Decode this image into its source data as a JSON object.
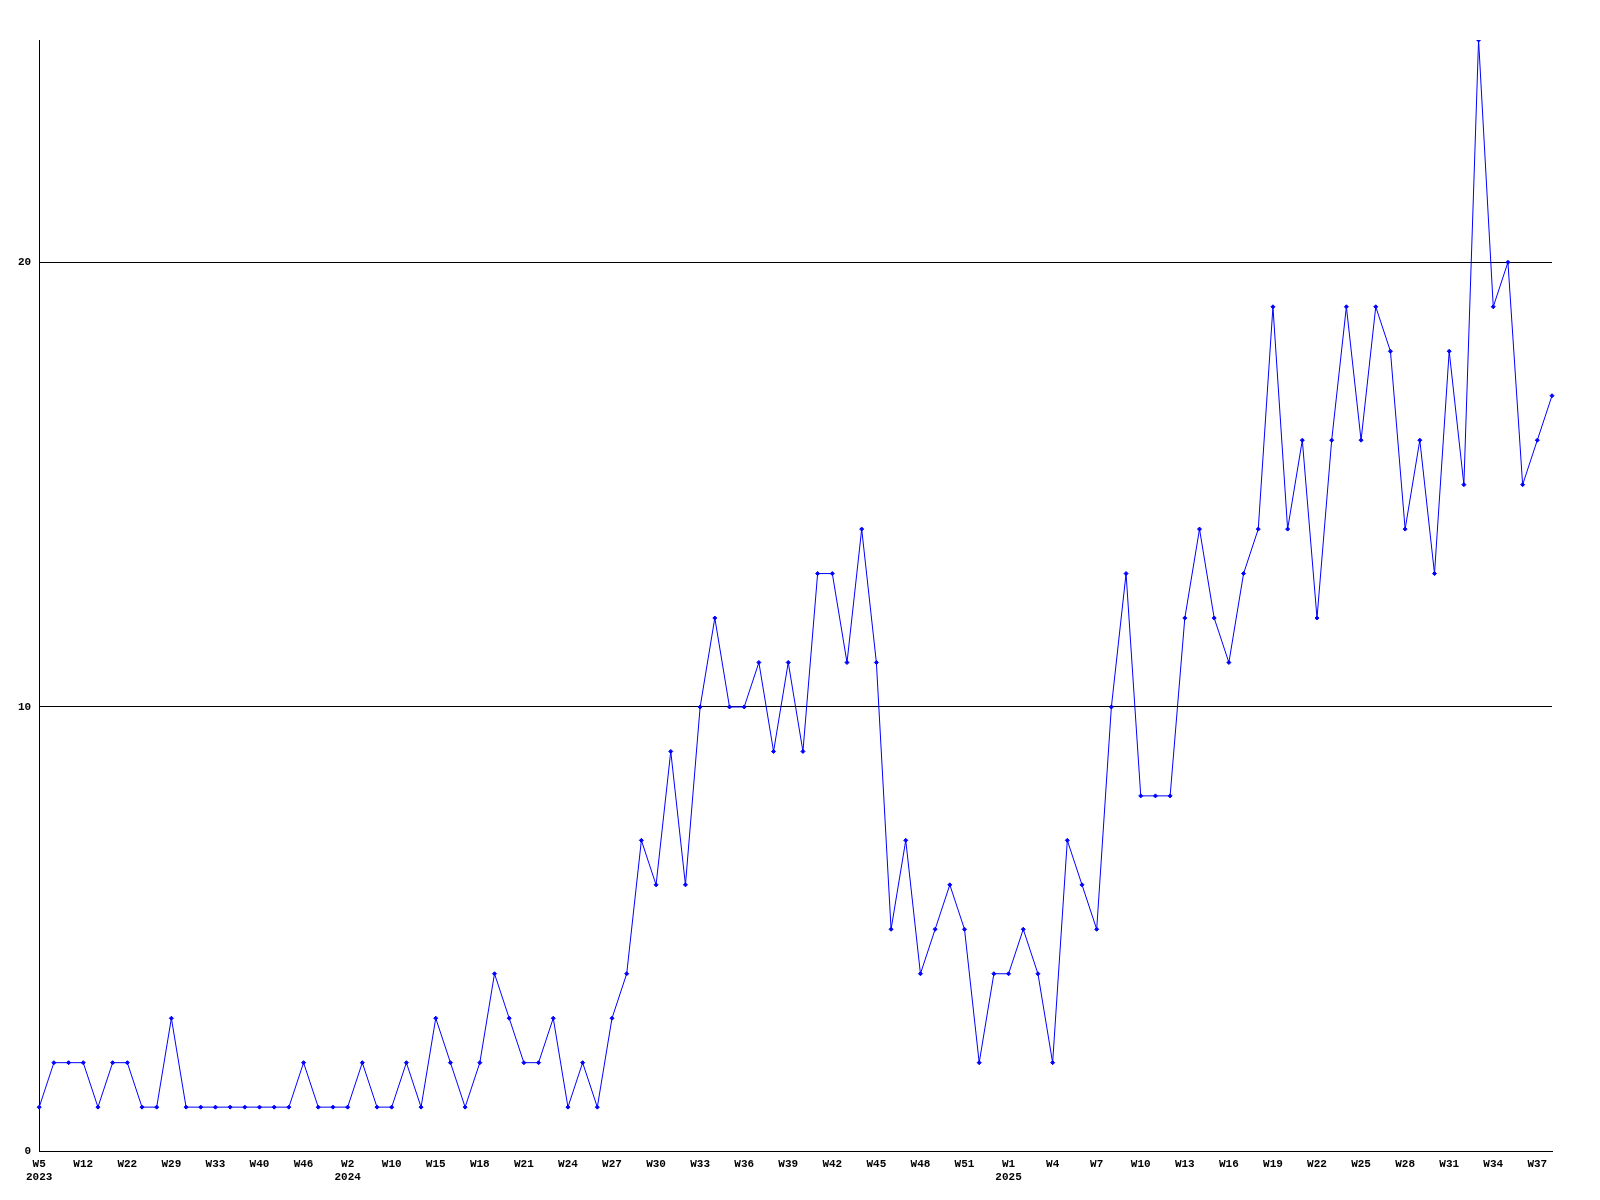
{
  "chart_data": {
    "type": "line",
    "categories": [
      "W5\n2023",
      null,
      null,
      "W12",
      null,
      null,
      "W22",
      null,
      null,
      "W29",
      null,
      null,
      "W33",
      null,
      null,
      "W40",
      null,
      null,
      "W46",
      null,
      null,
      "W2\n2024",
      null,
      null,
      "W10",
      null,
      null,
      "W15",
      null,
      null,
      "W18",
      null,
      null,
      "W21",
      null,
      null,
      "W24",
      null,
      null,
      "W27",
      null,
      null,
      "W30",
      null,
      null,
      "W33",
      null,
      null,
      "W36",
      null,
      null,
      "W39",
      null,
      null,
      "W42",
      null,
      null,
      "W45",
      null,
      null,
      "W48",
      null,
      null,
      "W51",
      null,
      null,
      "W1\n2025",
      null,
      null,
      "W4",
      null,
      null,
      "W7",
      null,
      null,
      "W10",
      null,
      null,
      "W13",
      null,
      null,
      "W16",
      null,
      null,
      "W19",
      null,
      null,
      "W22",
      null,
      null,
      "W25",
      null,
      null,
      "W28",
      null,
      null,
      "W31",
      null,
      null,
      "W34",
      null,
      null,
      "W37",
      null
    ],
    "series": [
      {
        "color": "#0000ff",
        "values": [
          1,
          2,
          2,
          2,
          1,
          2,
          2,
          1,
          1,
          3,
          1,
          1,
          1,
          1,
          1,
          1,
          1,
          1,
          2,
          1,
          1,
          1,
          2,
          1,
          1,
          2,
          1,
          3,
          2,
          1,
          2,
          4,
          3,
          2,
          2,
          3,
          1,
          2,
          1,
          3,
          4,
          7,
          6,
          9,
          6,
          10,
          12,
          10,
          10,
          11,
          9,
          11,
          9,
          13,
          13,
          11,
          14,
          11,
          5,
          7,
          4,
          5,
          6,
          5,
          2,
          4,
          4,
          5,
          4,
          2,
          7,
          6,
          5,
          10,
          13,
          8,
          8,
          8,
          12,
          14,
          12,
          11,
          13,
          14,
          19,
          14,
          16,
          12,
          16,
          19,
          16,
          19,
          18,
          14,
          16,
          13,
          18,
          15,
          25,
          19,
          20,
          15,
          16,
          17
        ]
      }
    ],
    "ylim": [
      0,
      25
    ],
    "yticks": [
      0,
      10,
      20
    ],
    "grid": "y",
    "legend": false,
    "marker": "diamond",
    "line_style": "solid"
  }
}
